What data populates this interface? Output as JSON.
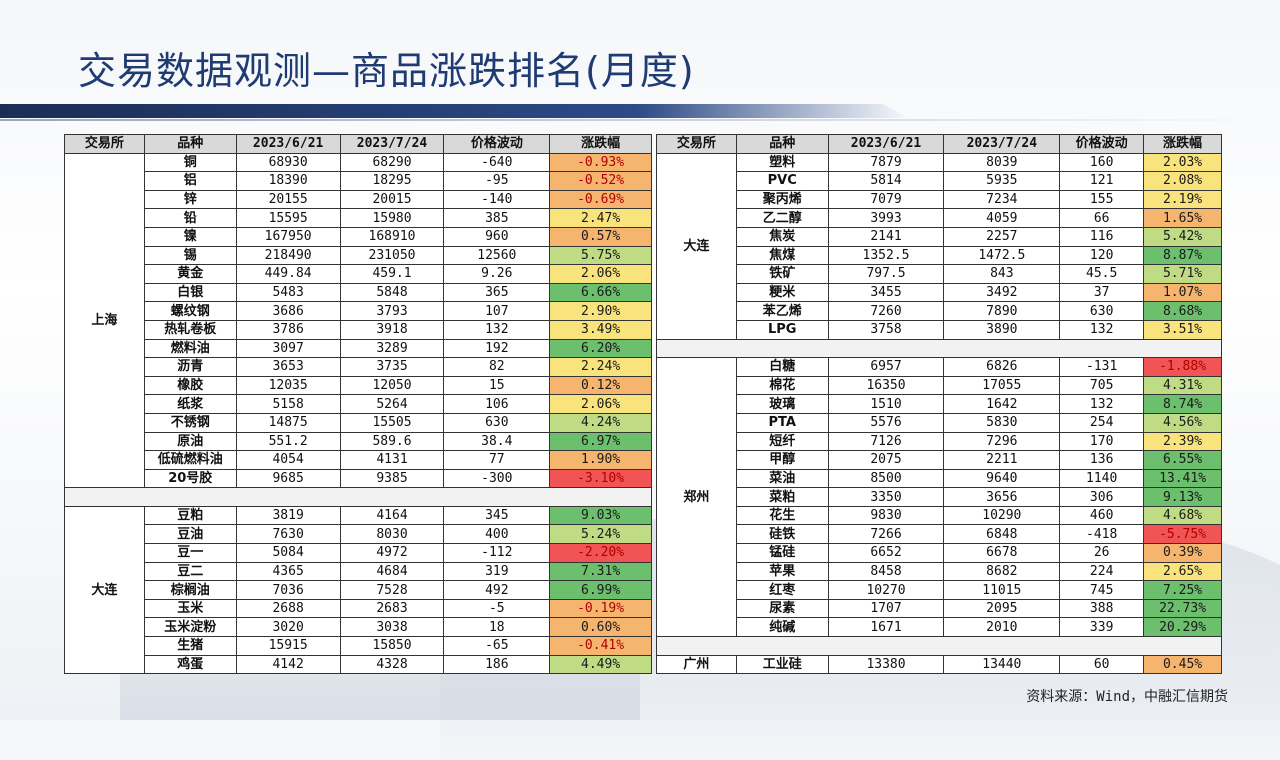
{
  "title": "交易数据观测—商品涨跌排名(月度)",
  "headers": [
    "交易所",
    "品种",
    "2023/6/21",
    "2023/7/24",
    "价格波动",
    "涨跌幅"
  ],
  "left_groups": [
    {
      "exchange": "上海",
      "rows": [
        {
          "name": "铜",
          "d1": "68930",
          "d2": "68290",
          "chg": "-640",
          "pct": "-0.93%",
          "val": -0.93
        },
        {
          "name": "铝",
          "d1": "18390",
          "d2": "18295",
          "chg": "-95",
          "pct": "-0.52%",
          "val": -0.52
        },
        {
          "name": "锌",
          "d1": "20155",
          "d2": "20015",
          "chg": "-140",
          "pct": "-0.69%",
          "val": -0.69
        },
        {
          "name": "铅",
          "d1": "15595",
          "d2": "15980",
          "chg": "385",
          "pct": "2.47%",
          "val": 2.47
        },
        {
          "name": "镍",
          "d1": "167950",
          "d2": "168910",
          "chg": "960",
          "pct": "0.57%",
          "val": 0.57
        },
        {
          "name": "锡",
          "d1": "218490",
          "d2": "231050",
          "chg": "12560",
          "pct": "5.75%",
          "val": 5.75
        },
        {
          "name": "黄金",
          "d1": "449.84",
          "d2": "459.1",
          "chg": "9.26",
          "pct": "2.06%",
          "val": 2.06
        },
        {
          "name": "白银",
          "d1": "5483",
          "d2": "5848",
          "chg": "365",
          "pct": "6.66%",
          "val": 6.66
        },
        {
          "name": "螺纹钢",
          "d1": "3686",
          "d2": "3793",
          "chg": "107",
          "pct": "2.90%",
          "val": 2.9
        },
        {
          "name": "热轧卷板",
          "d1": "3786",
          "d2": "3918",
          "chg": "132",
          "pct": "3.49%",
          "val": 3.49
        },
        {
          "name": "燃料油",
          "d1": "3097",
          "d2": "3289",
          "chg": "192",
          "pct": "6.20%",
          "val": 6.2
        },
        {
          "name": "沥青",
          "d1": "3653",
          "d2": "3735",
          "chg": "82",
          "pct": "2.24%",
          "val": 2.24
        },
        {
          "name": "橡胶",
          "d1": "12035",
          "d2": "12050",
          "chg": "15",
          "pct": "0.12%",
          "val": 0.12
        },
        {
          "name": "纸浆",
          "d1": "5158",
          "d2": "5264",
          "chg": "106",
          "pct": "2.06%",
          "val": 2.06
        },
        {
          "name": "不锈钢",
          "d1": "14875",
          "d2": "15505",
          "chg": "630",
          "pct": "4.24%",
          "val": 4.24
        },
        {
          "name": "原油",
          "d1": "551.2",
          "d2": "589.6",
          "chg": "38.4",
          "pct": "6.97%",
          "val": 6.97
        },
        {
          "name": "低硫燃料油",
          "d1": "4054",
          "d2": "4131",
          "chg": "77",
          "pct": "1.90%",
          "val": 1.9
        },
        {
          "name": "20号胶",
          "d1": "9685",
          "d2": "9385",
          "chg": "-300",
          "pct": "-3.10%",
          "val": -3.1
        }
      ]
    },
    {
      "exchange": "大连",
      "rows": [
        {
          "name": "豆粕",
          "d1": "3819",
          "d2": "4164",
          "chg": "345",
          "pct": "9.03%",
          "val": 9.03
        },
        {
          "name": "豆油",
          "d1": "7630",
          "d2": "8030",
          "chg": "400",
          "pct": "5.24%",
          "val": 5.24
        },
        {
          "name": "豆一",
          "d1": "5084",
          "d2": "4972",
          "chg": "-112",
          "pct": "-2.20%",
          "val": -2.2
        },
        {
          "name": "豆二",
          "d1": "4365",
          "d2": "4684",
          "chg": "319",
          "pct": "7.31%",
          "val": 7.31
        },
        {
          "name": "棕榈油",
          "d1": "7036",
          "d2": "7528",
          "chg": "492",
          "pct": "6.99%",
          "val": 6.99
        },
        {
          "name": "玉米",
          "d1": "2688",
          "d2": "2683",
          "chg": "-5",
          "pct": "-0.19%",
          "val": -0.19
        },
        {
          "name": "玉米淀粉",
          "d1": "3020",
          "d2": "3038",
          "chg": "18",
          "pct": "0.60%",
          "val": 0.6
        },
        {
          "name": "生猪",
          "d1": "15915",
          "d2": "15850",
          "chg": "-65",
          "pct": "-0.41%",
          "val": -0.41
        },
        {
          "name": "鸡蛋",
          "d1": "4142",
          "d2": "4328",
          "chg": "186",
          "pct": "4.49%",
          "val": 4.49
        }
      ]
    }
  ],
  "right_groups": [
    {
      "exchange": "大连",
      "rows": [
        {
          "name": "塑料",
          "d1": "7879",
          "d2": "8039",
          "chg": "160",
          "pct": "2.03%",
          "val": 2.03
        },
        {
          "name": "PVC",
          "d1": "5814",
          "d2": "5935",
          "chg": "121",
          "pct": "2.08%",
          "val": 2.08
        },
        {
          "name": "聚丙烯",
          "d1": "7079",
          "d2": "7234",
          "chg": "155",
          "pct": "2.19%",
          "val": 2.19
        },
        {
          "name": "乙二醇",
          "d1": "3993",
          "d2": "4059",
          "chg": "66",
          "pct": "1.65%",
          "val": 1.65
        },
        {
          "name": "焦炭",
          "d1": "2141",
          "d2": "2257",
          "chg": "116",
          "pct": "5.42%",
          "val": 5.42
        },
        {
          "name": "焦煤",
          "d1": "1352.5",
          "d2": "1472.5",
          "chg": "120",
          "pct": "8.87%",
          "val": 8.87
        },
        {
          "name": "铁矿",
          "d1": "797.5",
          "d2": "843",
          "chg": "45.5",
          "pct": "5.71%",
          "val": 5.71
        },
        {
          "name": "粳米",
          "d1": "3455",
          "d2": "3492",
          "chg": "37",
          "pct": "1.07%",
          "val": 1.07
        },
        {
          "name": "苯乙烯",
          "d1": "7260",
          "d2": "7890",
          "chg": "630",
          "pct": "8.68%",
          "val": 8.68
        },
        {
          "name": "LPG",
          "d1": "3758",
          "d2": "3890",
          "chg": "132",
          "pct": "3.51%",
          "val": 3.51
        }
      ]
    },
    {
      "exchange": "郑州",
      "rows": [
        {
          "name": "白糖",
          "d1": "6957",
          "d2": "6826",
          "chg": "-131",
          "pct": "-1.88%",
          "val": -1.88
        },
        {
          "name": "棉花",
          "d1": "16350",
          "d2": "17055",
          "chg": "705",
          "pct": "4.31%",
          "val": 4.31
        },
        {
          "name": "玻璃",
          "d1": "1510",
          "d2": "1642",
          "chg": "132",
          "pct": "8.74%",
          "val": 8.74
        },
        {
          "name": "PTA",
          "d1": "5576",
          "d2": "5830",
          "chg": "254",
          "pct": "4.56%",
          "val": 4.56
        },
        {
          "name": "短纤",
          "d1": "7126",
          "d2": "7296",
          "chg": "170",
          "pct": "2.39%",
          "val": 2.39
        },
        {
          "name": "甲醇",
          "d1": "2075",
          "d2": "2211",
          "chg": "136",
          "pct": "6.55%",
          "val": 6.55
        },
        {
          "name": "菜油",
          "d1": "8500",
          "d2": "9640",
          "chg": "1140",
          "pct": "13.41%",
          "val": 13.41
        },
        {
          "name": "菜粕",
          "d1": "3350",
          "d2": "3656",
          "chg": "306",
          "pct": "9.13%",
          "val": 9.13
        },
        {
          "name": "花生",
          "d1": "9830",
          "d2": "10290",
          "chg": "460",
          "pct": "4.68%",
          "val": 4.68
        },
        {
          "name": "硅铁",
          "d1": "7266",
          "d2": "6848",
          "chg": "-418",
          "pct": "-5.75%",
          "val": -5.75
        },
        {
          "name": "锰硅",
          "d1": "6652",
          "d2": "6678",
          "chg": "26",
          "pct": "0.39%",
          "val": 0.39
        },
        {
          "name": "苹果",
          "d1": "8458",
          "d2": "8682",
          "chg": "224",
          "pct": "2.65%",
          "val": 2.65
        },
        {
          "name": "红枣",
          "d1": "10270",
          "d2": "11015",
          "chg": "745",
          "pct": "7.25%",
          "val": 7.25
        },
        {
          "name": "尿素",
          "d1": "1707",
          "d2": "2095",
          "chg": "388",
          "pct": "22.73%",
          "val": 22.73
        },
        {
          "name": "纯碱",
          "d1": "1671",
          "d2": "2010",
          "chg": "339",
          "pct": "20.29%",
          "val": 20.29
        }
      ]
    },
    {
      "exchange": "广州",
      "rows": [
        {
          "name": "工业硅",
          "d1": "13380",
          "d2": "13440",
          "chg": "60",
          "pct": "0.45%",
          "val": 0.45
        }
      ]
    }
  ],
  "source": "资料来源：Wind，中融汇信期货",
  "colors": {
    "title": "#1f3b73",
    "pct_red": "#f05454",
    "pct_orange": "#f6b56e",
    "pct_yellow": "#f8e37c",
    "pct_lightgreen": "#bfdc85",
    "pct_green": "#6cbf6c"
  }
}
